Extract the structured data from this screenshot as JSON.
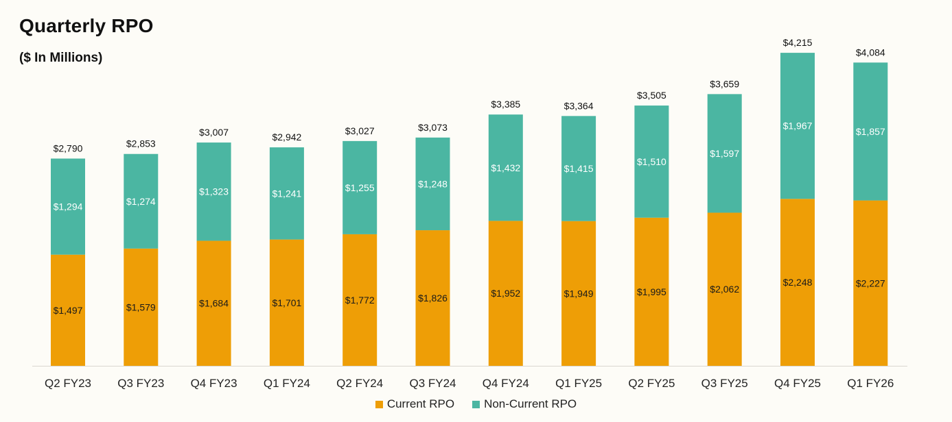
{
  "title": "Quarterly RPO",
  "subtitle": "($ In Millions)",
  "colors": {
    "current": "#ee9e06",
    "noncurrent": "#4bb6a2",
    "axis": "#d9d6cf",
    "text": "#111111"
  },
  "chart_data": {
    "type": "bar",
    "stacked": true,
    "title": "Quarterly RPO",
    "subtitle": "($ In Millions)",
    "categories": [
      "Q2 FY23",
      "Q3 FY23",
      "Q4 FY23",
      "Q1 FY24",
      "Q2 FY24",
      "Q3 FY24",
      "Q4 FY24",
      "Q1 FY25",
      "Q2 FY25",
      "Q3 FY25",
      "Q4 FY25",
      "Q1 FY26"
    ],
    "series": [
      {
        "name": "Current RPO",
        "values": [
          1497,
          1579,
          1684,
          1701,
          1772,
          1826,
          1952,
          1949,
          1995,
          2062,
          2248,
          2227
        ],
        "labels": [
          "$1,497",
          "$1,579",
          "$1,684",
          "$1,701",
          "$1,772",
          "$1,826",
          "$1,952",
          "$1,949",
          "$1,995",
          "$2,062",
          "$2,248",
          "$2,227"
        ]
      },
      {
        "name": "Non-Current RPO",
        "values": [
          1294,
          1274,
          1323,
          1241,
          1255,
          1248,
          1432,
          1415,
          1510,
          1597,
          1967,
          1857
        ],
        "labels": [
          "$1,294",
          "$1,274",
          "$1,323",
          "$1,241",
          "$1,255",
          "$1,248",
          "$1,432",
          "$1,415",
          "$1,510",
          "$1,597",
          "$1,967",
          "$1,857"
        ]
      }
    ],
    "totals": [
      2790,
      2853,
      3007,
      2942,
      3027,
      3073,
      3385,
      3364,
      3505,
      3659,
      4215,
      4084
    ],
    "total_labels": [
      "$2,790",
      "$2,853",
      "$3,007",
      "$2,942",
      "$3,027",
      "$3,073",
      "$3,385",
      "$3,364",
      "$3,505",
      "$3,659",
      "$4,215",
      "$4,084"
    ],
    "xlabel": "",
    "ylabel": "",
    "y_axis_shown": false,
    "grid": false,
    "legend_position": "bottom-center"
  },
  "legend": {
    "items": [
      {
        "label": "Current RPO",
        "color": "#ee9e06"
      },
      {
        "label": "Non-Current RPO",
        "color": "#4bb6a2"
      }
    ]
  }
}
